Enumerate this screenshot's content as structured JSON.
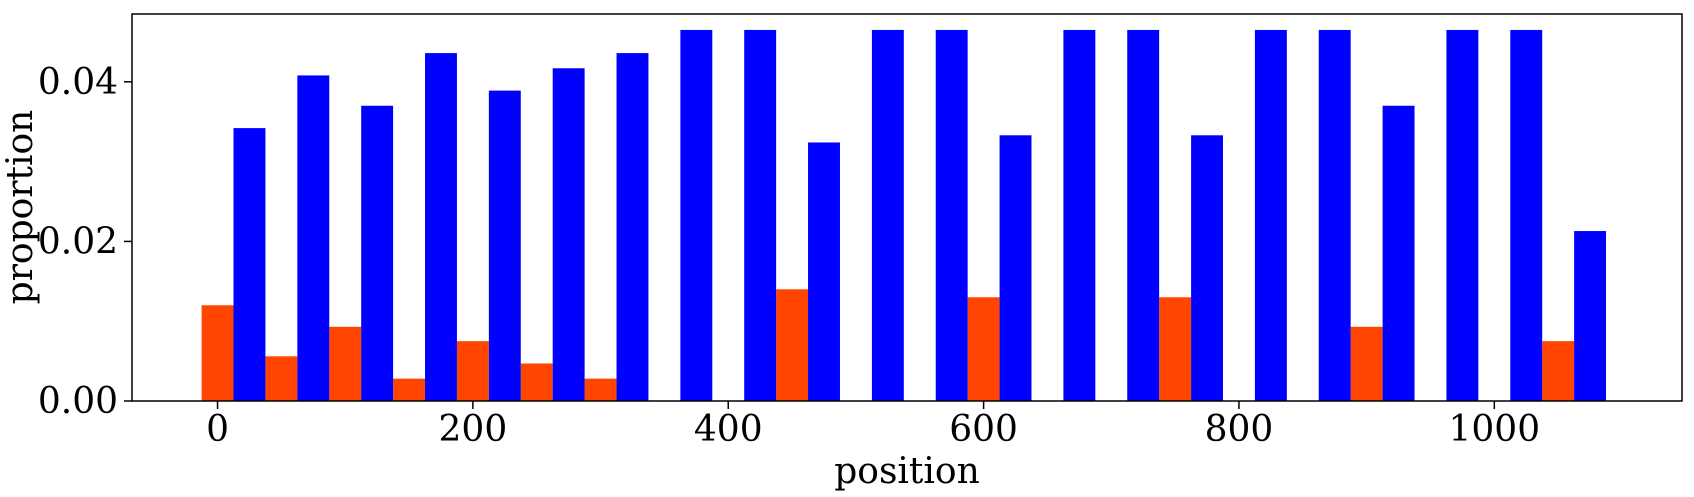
{
  "chart_data": {
    "type": "bar",
    "xlabel": "position",
    "ylabel": "proportion",
    "xlim": [
      -67,
      1147
    ],
    "ylim": [
      0,
      0.0485
    ],
    "xticks": [
      0,
      200,
      400,
      600,
      800,
      1000
    ],
    "yticks": [
      0.0,
      0.02,
      0.04
    ],
    "xtick_labels": [
      "0",
      "200",
      "400",
      "600",
      "800",
      "1000"
    ],
    "ytick_labels": [
      "0.00",
      "0.02",
      "0.04"
    ],
    "grid": false,
    "bar_width": 25,
    "x": [
      0,
      50,
      100,
      150,
      200,
      250,
      300,
      350,
      400,
      450,
      500,
      550,
      600,
      650,
      700,
      750,
      800,
      850,
      900,
      950,
      1000,
      1050
    ],
    "series": [
      {
        "color": "#ff4500",
        "offset": 0,
        "values": [
          0.012,
          0.0056,
          0.0093,
          0.0028,
          0.0075,
          0.0047,
          0.0028,
          0,
          0,
          0.014,
          0,
          0,
          0.013,
          0,
          0,
          0.013,
          0,
          0,
          0.0093,
          0,
          0,
          0.0075
        ]
      },
      {
        "color": "#0000ff",
        "offset": 25,
        "values": [
          0.0342,
          0.0408,
          0.037,
          0.0436,
          0.0389,
          0.0417,
          0.0436,
          0.0465,
          0.0465,
          0.0324,
          0.0465,
          0.0465,
          0.0333,
          0.0465,
          0.0465,
          0.0333,
          0.0465,
          0.0465,
          0.037,
          0.0465,
          0.0465,
          0.0213
        ]
      }
    ]
  }
}
